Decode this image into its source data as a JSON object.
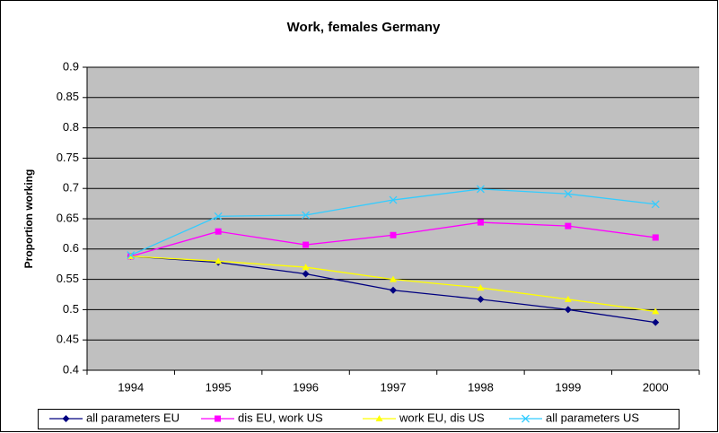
{
  "chart_data": {
    "type": "line",
    "title": "Work, females Germany",
    "y_label": "Proportion working",
    "categories": [
      "1994",
      "1995",
      "1996",
      "1997",
      "1998",
      "1999",
      "2000"
    ],
    "series": [
      {
        "name": "all parameters EU",
        "color": "#000080",
        "marker": "diamond",
        "values": [
          0.588,
          0.578,
          0.559,
          0.532,
          0.517,
          0.5,
          0.479
        ]
      },
      {
        "name": "dis EU, work US",
        "color": "#ff00ff",
        "marker": "square",
        "values": [
          0.588,
          0.629,
          0.607,
          0.623,
          0.644,
          0.638,
          0.619
        ]
      },
      {
        "name": "work EU, dis US",
        "color": "#ffff00",
        "marker": "triangle",
        "values": [
          0.588,
          0.58,
          0.57,
          0.55,
          0.536,
          0.517,
          0.497
        ]
      },
      {
        "name": "all parameters US",
        "color": "#33ccff",
        "marker": "x",
        "values": [
          0.59,
          0.654,
          0.656,
          0.681,
          0.699,
          0.691,
          0.674
        ]
      }
    ],
    "ylim": [
      0.4,
      0.9
    ],
    "yticks": [
      0.4,
      0.45,
      0.5,
      0.55,
      0.6,
      0.65,
      0.7,
      0.75,
      0.8,
      0.85,
      0.9
    ],
    "grid": true,
    "legend": "bottom"
  }
}
